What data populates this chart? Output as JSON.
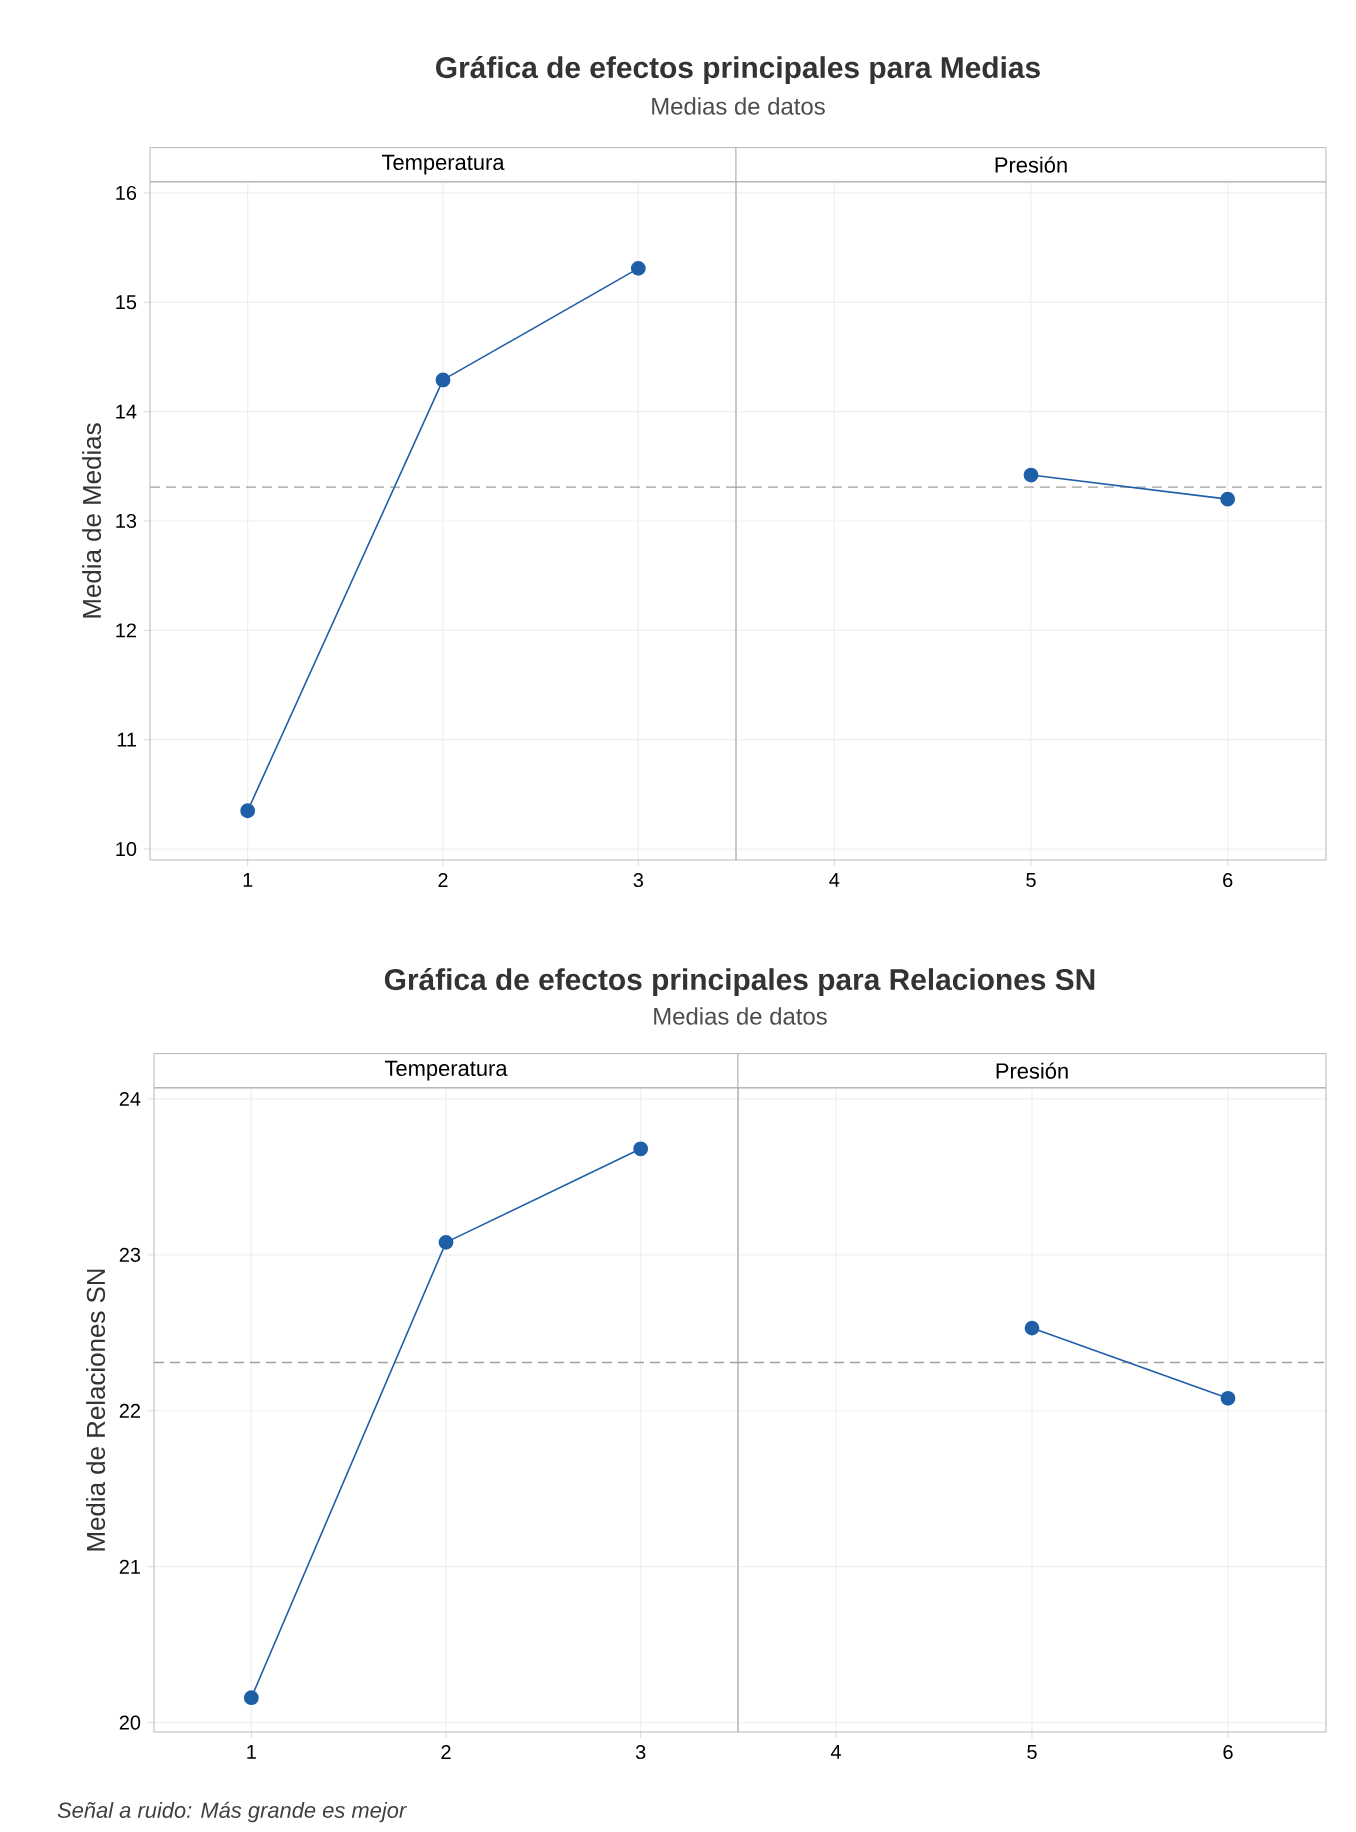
{
  "chart_data": [
    {
      "type": "line",
      "title": "Gráfica de efectos principales para Medias",
      "subtitle": "Medias de datos",
      "xlabel": "Temperatura",
      "ylabel": "Media de Medias",
      "x": [
        1,
        2,
        3
      ],
      "series": [
        {
          "color": "#1f5fa8",
          "values": [
            10.35,
            14.29,
            15.31
          ]
        }
      ],
      "xlim": [
        0.5,
        3.5
      ],
      "xticks": [
        1,
        2,
        3
      ],
      "ylim": [
        9.9,
        16.1
      ],
      "yticks": [
        10,
        11,
        12,
        13,
        14,
        15,
        16
      ],
      "ref_lines": [
        {
          "axis": "y",
          "value": 13.31,
          "color": "#a0a0a0",
          "line_style": "dashed"
        }
      ],
      "grid": true,
      "marker": "circle",
      "line_style": "solid"
    },
    {
      "type": "line",
      "xlabel": "Presión",
      "x": [
        5,
        6
      ],
      "series": [
        {
          "color": "#1f5fa8",
          "values": [
            13.42,
            13.2
          ]
        }
      ],
      "xlim": [
        3.5,
        6.5
      ],
      "xticks": [
        4,
        5,
        6
      ],
      "ylim": [
        9.9,
        16.1
      ],
      "yticks": [
        10,
        11,
        12,
        13,
        14,
        15,
        16
      ],
      "ref_lines": [
        {
          "axis": "y",
          "value": 13.31,
          "color": "#a0a0a0",
          "line_style": "dashed"
        }
      ],
      "grid": true,
      "marker": "circle",
      "line_style": "solid",
      "tick_labels": "x"
    },
    {
      "type": "line",
      "title": "Gráfica de efectos principales para Relaciones SN",
      "subtitle": "Medias de datos",
      "xlabel": "Temperatura",
      "ylabel": "Media de Relaciones SN",
      "x": [
        1,
        2,
        3
      ],
      "series": [
        {
          "color": "#1f5fa8",
          "values": [
            20.16,
            23.08,
            23.68
          ]
        }
      ],
      "xlim": [
        0.5,
        3.5
      ],
      "xticks": [
        1,
        2,
        3
      ],
      "ylim": [
        19.94,
        24.07
      ],
      "yticks": [
        20,
        21,
        22,
        23,
        24
      ],
      "ref_lines": [
        {
          "axis": "y",
          "value": 22.31,
          "color": "#a0a0a0",
          "line_style": "dashed"
        }
      ],
      "annotations": [
        "Señal a ruido: Más grande es mejor"
      ],
      "grid": true,
      "marker": "circle",
      "line_style": "solid"
    },
    {
      "type": "line",
      "xlabel": "Presión",
      "x": [
        5,
        6
      ],
      "series": [
        {
          "color": "#1f5fa8",
          "values": [
            22.53,
            22.08
          ]
        }
      ],
      "xlim": [
        3.5,
        6.5
      ],
      "xticks": [
        4,
        5,
        6
      ],
      "ylim": [
        19.94,
        24.07
      ],
      "yticks": [
        20,
        21,
        22,
        23,
        24
      ],
      "ref_lines": [
        {
          "axis": "y",
          "value": 22.31,
          "color": "#a0a0a0",
          "line_style": "dashed"
        }
      ],
      "grid": true,
      "marker": "circle",
      "line_style": "solid",
      "tick_labels": "x"
    }
  ]
}
